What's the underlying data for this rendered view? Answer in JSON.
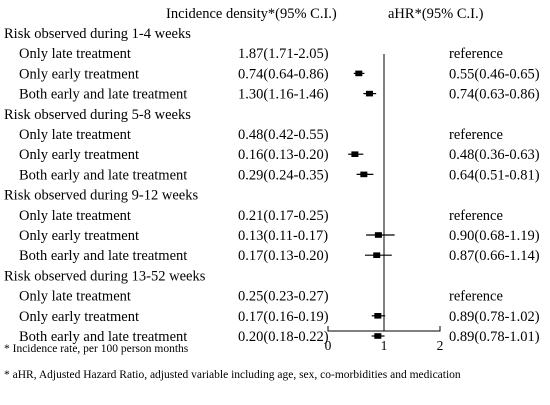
{
  "headers": {
    "incidence": "Incidence density*(95% C.I.)",
    "ahr": "aHR*(95% C.I.)"
  },
  "notes": [
    "* Incidence rate, per 100 person months",
    "* aHR, Adjusted Hazard Ratio, adjusted variable including age, sex, co-morbidities and medication"
  ],
  "chart_data": {
    "type": "forest",
    "xlim": [
      0,
      2
    ],
    "x_ticks": [
      "0",
      "1",
      "2"
    ],
    "reference_line": 1,
    "groups": [
      {
        "label": "Risk observed during 1-4 weeks",
        "rows": [
          {
            "label": "Only late treatment",
            "incidence": "1.87(1.71-2.05)",
            "ahr_text": "reference",
            "hr": null,
            "lo": null,
            "hi": null
          },
          {
            "label": "Only early treatment",
            "incidence": "0.74(0.64-0.86)",
            "ahr_text": "0.55(0.46-0.65)",
            "hr": 0.55,
            "lo": 0.46,
            "hi": 0.65
          },
          {
            "label": "Both early and late treatment",
            "incidence": "1.30(1.16-1.46)",
            "ahr_text": "0.74(0.63-0.86)",
            "hr": 0.74,
            "lo": 0.63,
            "hi": 0.86
          }
        ]
      },
      {
        "label": "Risk observed during 5-8 weeks",
        "rows": [
          {
            "label": "Only late treatment",
            "incidence": "0.48(0.42-0.55)",
            "ahr_text": "reference",
            "hr": null,
            "lo": null,
            "hi": null
          },
          {
            "label": "Only early treatment",
            "incidence": "0.16(0.13-0.20)",
            "ahr_text": "0.48(0.36-0.63)",
            "hr": 0.48,
            "lo": 0.36,
            "hi": 0.63
          },
          {
            "label": "Both early and late treatment",
            "incidence": "0.29(0.24-0.35)",
            "ahr_text": "0.64(0.51-0.81)",
            "hr": 0.64,
            "lo": 0.51,
            "hi": 0.81
          }
        ]
      },
      {
        "label": "Risk observed during 9-12 weeks",
        "rows": [
          {
            "label": "Only late treatment",
            "incidence": "0.21(0.17-0.25)",
            "ahr_text": "reference",
            "hr": null,
            "lo": null,
            "hi": null
          },
          {
            "label": "Only early treatment",
            "incidence": "0.13(0.11-0.17)",
            "ahr_text": "0.90(0.68-1.19)",
            "hr": 0.9,
            "lo": 0.68,
            "hi": 1.19
          },
          {
            "label": "Both early and late treatment",
            "incidence": "0.17(0.13-0.20)",
            "ahr_text": "0.87(0.66-1.14)",
            "hr": 0.87,
            "lo": 0.66,
            "hi": 1.14
          }
        ]
      },
      {
        "label": "Risk observed during 13-52 weeks",
        "rows": [
          {
            "label": "Only late treatment",
            "incidence": "0.25(0.23-0.27)",
            "ahr_text": "reference",
            "hr": null,
            "lo": null,
            "hi": null
          },
          {
            "label": "Only early treatment",
            "incidence": "0.17(0.16-0.19)",
            "ahr_text": "0.89(0.78-1.02)",
            "hr": 0.89,
            "lo": 0.78,
            "hi": 1.02
          },
          {
            "label": "Both early and late treatment",
            "incidence": "0.20(0.18-0.22)",
            "ahr_text": "0.89(0.78-1.01)",
            "hr": 0.89,
            "lo": 0.78,
            "hi": 1.01
          }
        ]
      }
    ]
  }
}
